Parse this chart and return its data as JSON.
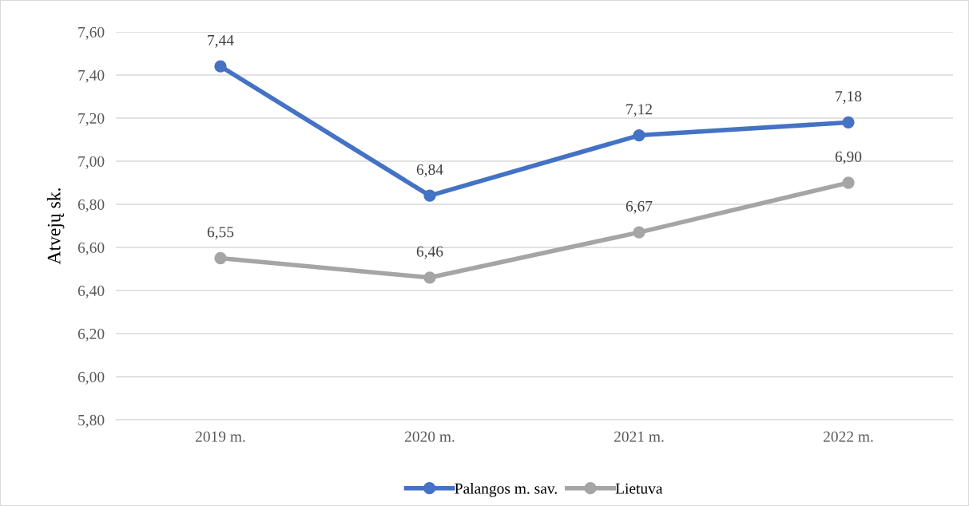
{
  "chart_data": {
    "type": "line",
    "ylabel": "Atvejų sk.",
    "categories": [
      "2019 m.",
      "2020 m.",
      "2021 m.",
      "2022 m."
    ],
    "series": [
      {
        "name": "Palangos m. sav.",
        "color": "#4472c4",
        "values": [
          7.44,
          6.84,
          7.12,
          7.18
        ],
        "value_labels": [
          "7,44",
          "6,84",
          "7,12",
          "7,18"
        ]
      },
      {
        "name": "Lietuva",
        "color": "#a5a5a5",
        "values": [
          6.55,
          6.46,
          6.67,
          6.9
        ],
        "value_labels": [
          "6,55",
          "6,46",
          "6,67",
          "6,90"
        ]
      }
    ],
    "ylim": [
      5.8,
      7.6
    ],
    "yticks": [
      {
        "value": 5.8,
        "label": "5,80"
      },
      {
        "value": 6.0,
        "label": "6,00"
      },
      {
        "value": 6.2,
        "label": "6,20"
      },
      {
        "value": 6.4,
        "label": "6,40"
      },
      {
        "value": 6.6,
        "label": "6,60"
      },
      {
        "value": 6.8,
        "label": "6,80"
      },
      {
        "value": 7.0,
        "label": "7,00"
      },
      {
        "value": 7.2,
        "label": "7,20"
      },
      {
        "value": 7.4,
        "label": "7,40"
      },
      {
        "value": 7.6,
        "label": "7,60"
      }
    ],
    "grid": "y",
    "legend": "bottom",
    "marker": "circle",
    "line_style": "solid"
  }
}
